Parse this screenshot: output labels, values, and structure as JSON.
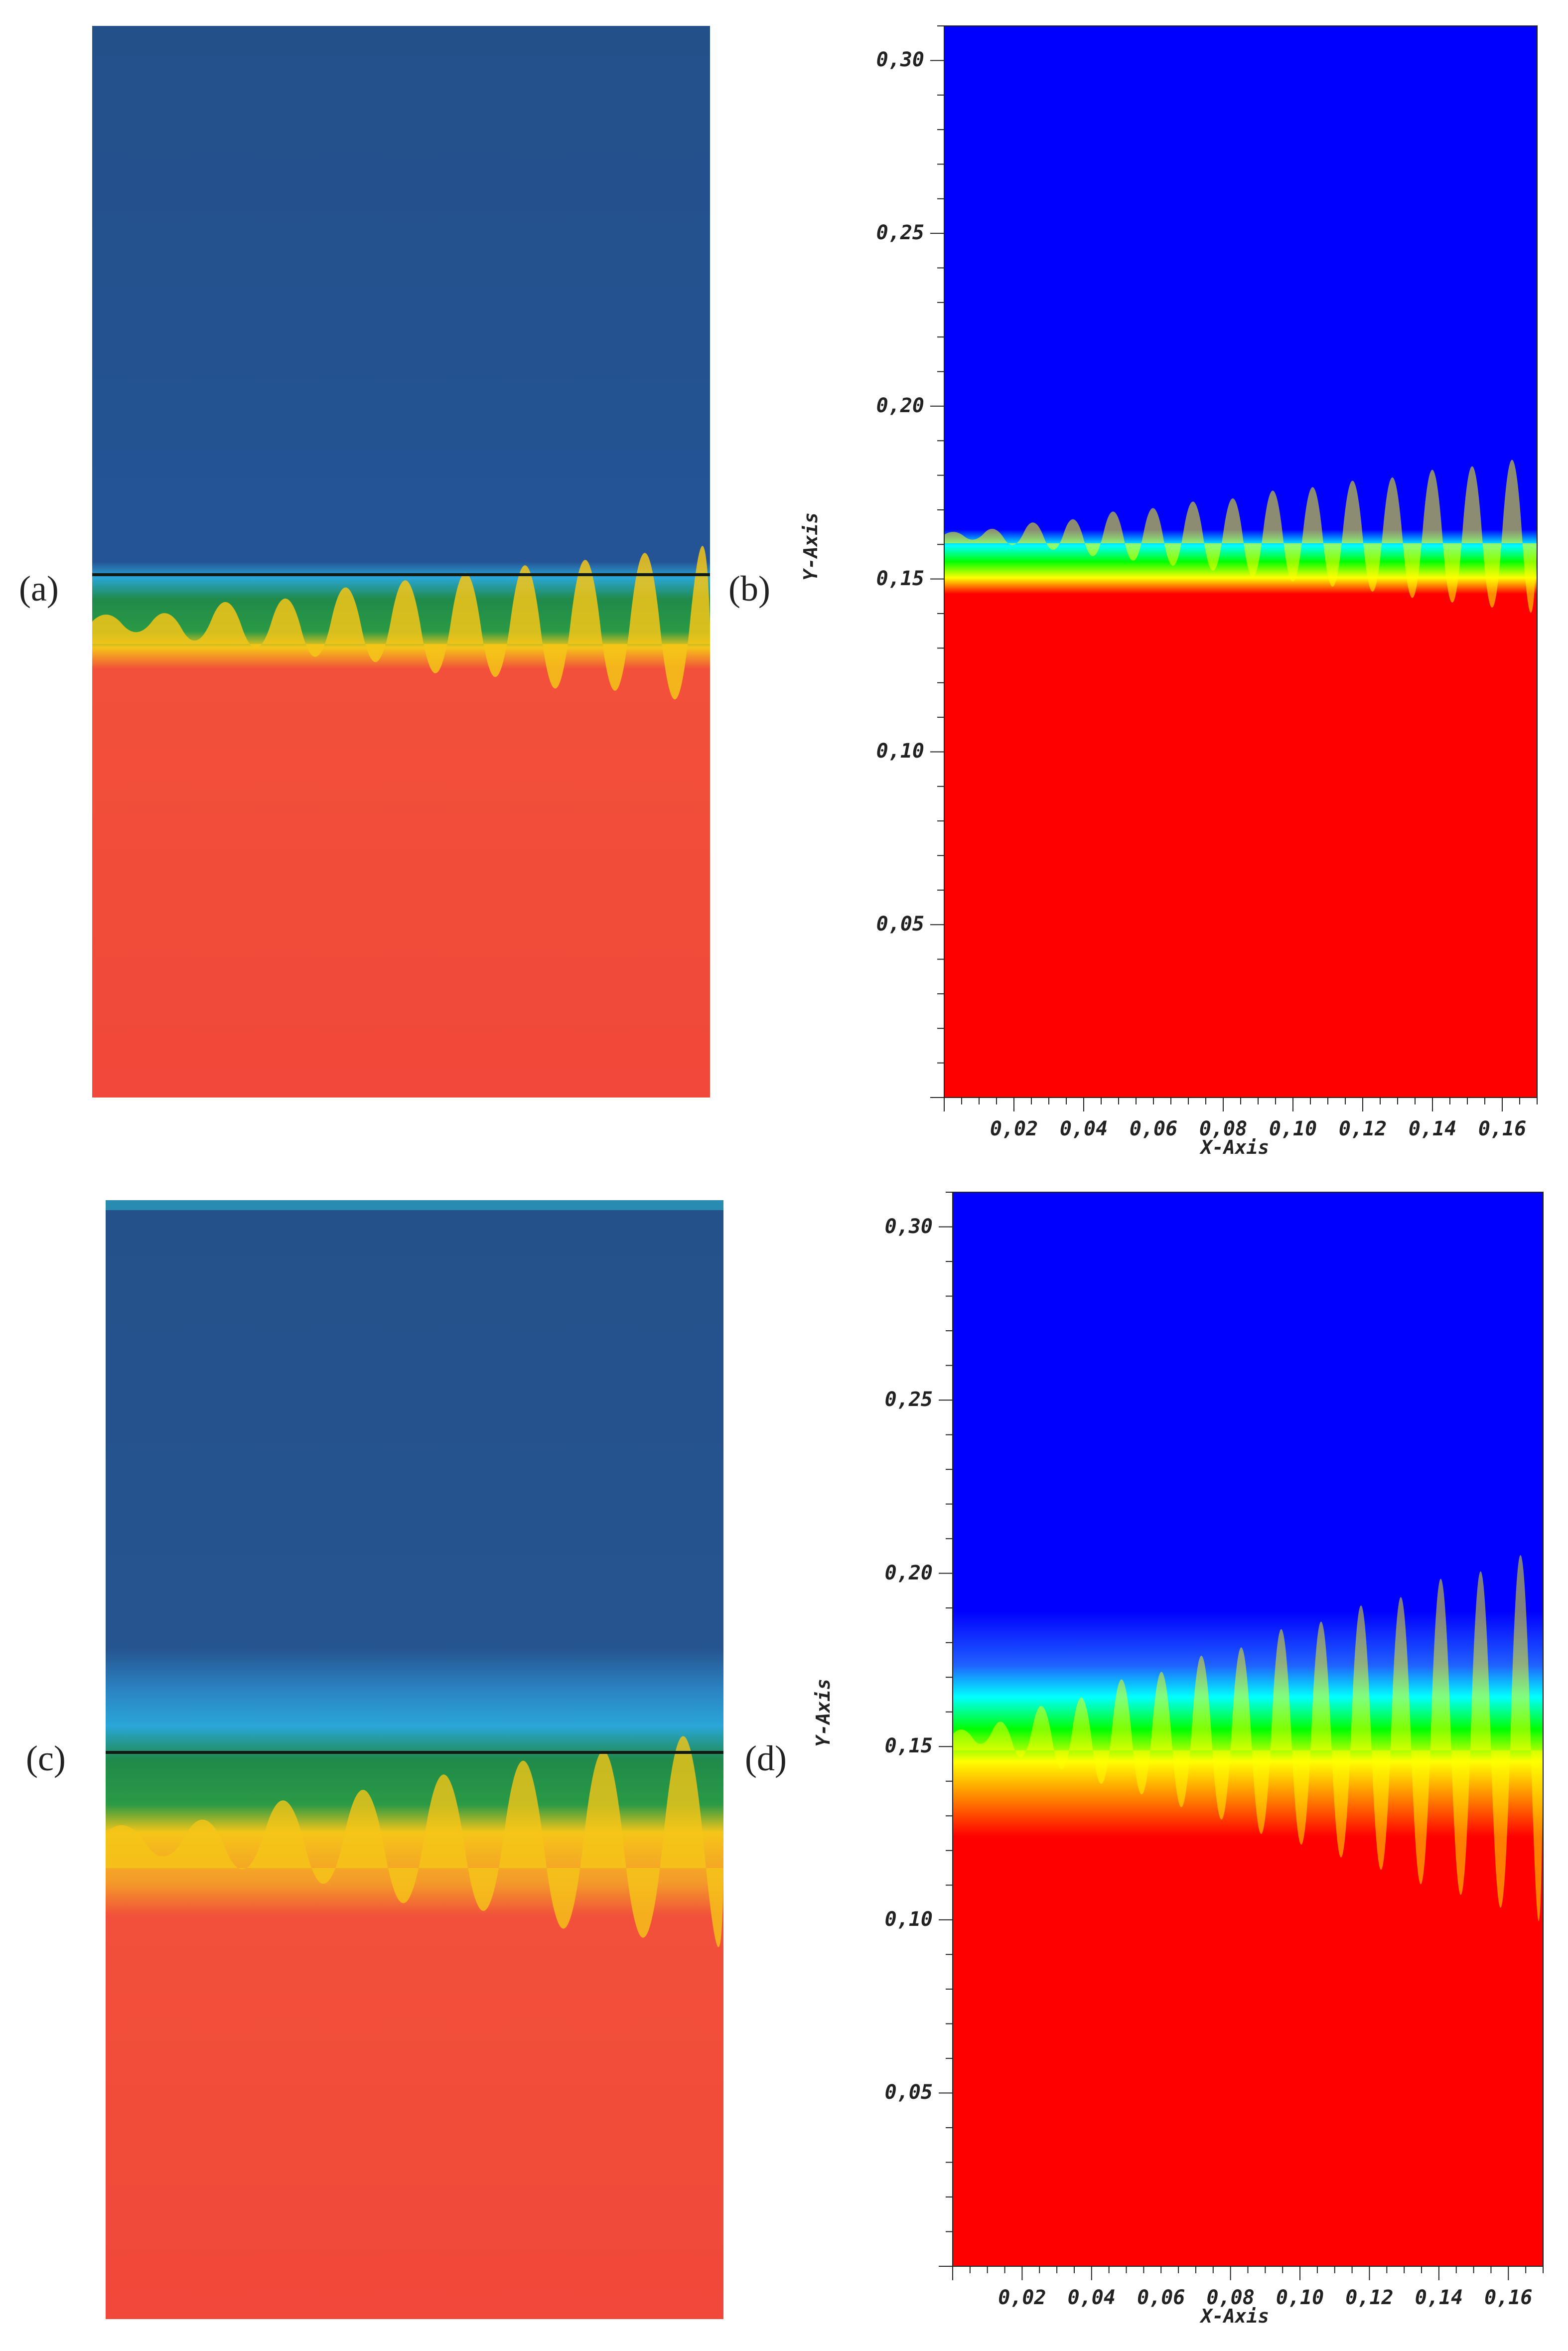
{
  "panels": [
    {
      "label": "(a)",
      "kind": "photo"
    },
    {
      "label": "(b)",
      "kind": "simulation"
    },
    {
      "label": "(c)",
      "kind": "photo"
    },
    {
      "label": "(d)",
      "kind": "simulation"
    }
  ],
  "axes": {
    "xlabel": "X-Axis",
    "ylabel": "Y-Axis",
    "yticks": [
      "0,30",
      "0,25",
      "0,20",
      "0,15",
      "0,10",
      "0,05"
    ],
    "ytick_values": [
      0.3,
      0.25,
      0.2,
      0.15,
      0.1,
      0.05
    ],
    "xticks": [
      "0,02",
      "0,04",
      "0,06",
      "0,08",
      "0,10",
      "0,12",
      "0,14",
      "0,16"
    ],
    "xtick_values": [
      0.02,
      0.04,
      0.06,
      0.08,
      0.1,
      0.12,
      0.14,
      0.16
    ],
    "xlim": [
      0,
      0.17
    ],
    "ylim": [
      0,
      0.31
    ]
  },
  "colors": {
    "photo_top": "#24508a",
    "photo_cyan": "#2aa6d8",
    "photo_green": "#1f8a4a",
    "photo_yellow": "#f5c518",
    "photo_bottom": "#f2503a",
    "sim_top": "#0000ff",
    "sim_cyan": "#00ffff",
    "sim_green": "#00ff00",
    "sim_yellow": "#ffff00",
    "sim_bottom": "#ff0000"
  }
}
